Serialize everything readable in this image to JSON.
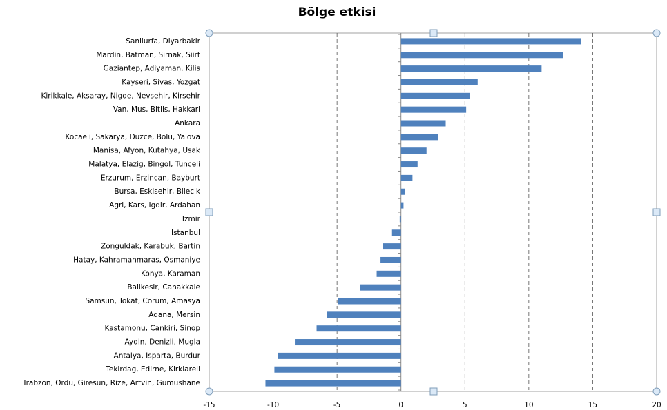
{
  "chart_data": {
    "type": "barh",
    "title": "Bölge etkisi",
    "categories": [
      "Sanliurfa, Diyarbakir",
      "Mardin, Batman, Sirnak, Siirt",
      "Gaziantep, Adiyaman, Kilis",
      "Kayseri, Sivas, Yozgat",
      "Kirikkale, Aksaray, Nigde, Nevsehir, Kirsehir",
      "Van, Mus, Bitlis, Hakkari",
      "Ankara",
      "Kocaeli, Sakarya, Duzce, Bolu, Yalova",
      "Manisa, Afyon, Kutahya, Usak",
      "Malatya, Elazig, Bingol, Tunceli",
      "Erzurum, Erzincan, Bayburt",
      "Bursa, Eskisehir, Bilecik",
      "Agri, Kars, Igdir, Ardahan",
      "Izmir",
      "Istanbul",
      "Zonguldak, Karabuk, Bartin",
      "Hatay, Kahramanmaras, Osmaniye",
      "Konya, Karaman",
      "Balikesir, Canakkale",
      "Samsun, Tokat, Corum, Amasya",
      "Adana, Mersin",
      "Kastamonu, Cankiri, Sinop",
      "Aydin, Denizli, Mugla",
      "Antalya, Isparta, Burdur",
      "Tekirdag, Edirne, Kirklareli",
      "Trabzon, Ordu, Giresun, Rize, Artvin, Gumushane"
    ],
    "values": [
      14.1,
      12.7,
      11.0,
      6.0,
      5.4,
      5.1,
      3.5,
      2.9,
      2.0,
      1.3,
      0.9,
      0.3,
      0.2,
      -0.1,
      -0.7,
      -1.4,
      -1.6,
      -1.9,
      -3.2,
      -4.9,
      -5.8,
      -6.6,
      -8.3,
      -9.6,
      -9.9,
      -10.6
    ],
    "color": "#4f81bd",
    "xlim": [
      -15,
      20
    ],
    "xticks": [
      -15,
      -10,
      -5,
      0,
      5,
      10,
      15,
      20
    ],
    "grid": true
  }
}
